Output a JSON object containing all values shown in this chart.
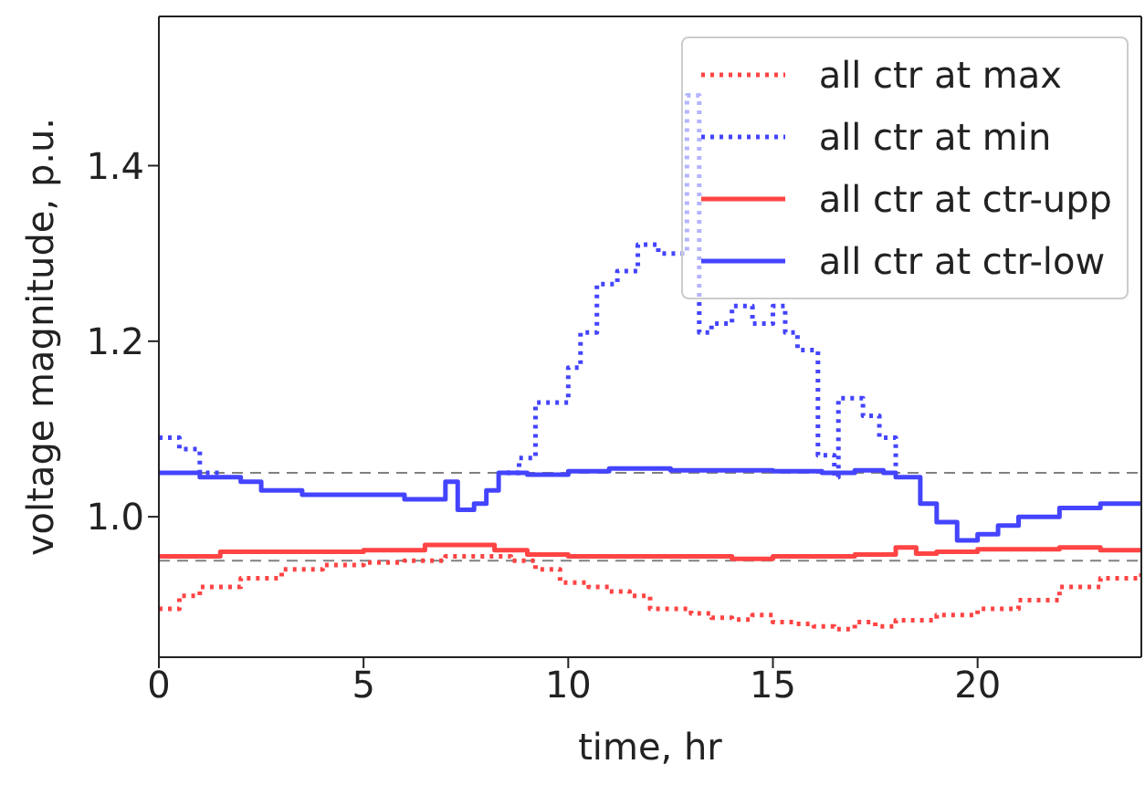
{
  "chart_data": {
    "type": "step",
    "xlabel": "time, hr",
    "ylabel": "voltage magnitude, p.u.",
    "xlim": [
      0,
      24
    ],
    "ylim": [
      0.84,
      1.57
    ],
    "xticks": [
      0,
      5,
      10,
      15,
      20
    ],
    "yticks": [
      {
        "value": 1,
        "label": "1.0"
      },
      1.2,
      1.4
    ],
    "grid": false,
    "legend": "top right",
    "ref_lines": [
      {
        "axis": "y",
        "value": 1.05,
        "color": "#808080",
        "line_style": "dashed"
      },
      {
        "axis": "y",
        "value": 0.95,
        "color": "#808080",
        "line_style": "dashed"
      }
    ],
    "series": [
      {
        "name": "all ctr at max",
        "color": "#ff4444",
        "line_style": "dotted",
        "x": [
          0,
          0.5,
          1,
          2,
          3,
          4,
          5,
          6,
          7,
          8,
          8.6,
          9.2,
          9.8,
          10.5,
          11,
          11.5,
          12,
          13,
          13.5,
          14,
          14.5,
          15,
          15.5,
          16,
          16.5,
          17,
          17.5,
          18,
          19,
          20,
          21,
          22,
          23,
          24
        ],
        "values": [
          0.895,
          0.91,
          0.92,
          0.93,
          0.94,
          0.945,
          0.948,
          0.95,
          0.955,
          0.955,
          0.95,
          0.94,
          0.925,
          0.92,
          0.915,
          0.91,
          0.895,
          0.89,
          0.885,
          0.883,
          0.888,
          0.88,
          0.878,
          0.875,
          0.872,
          0.88,
          0.875,
          0.882,
          0.888,
          0.895,
          0.905,
          0.92,
          0.93,
          0.94
        ]
      },
      {
        "name": "all ctr at min",
        "color": "#4444ff",
        "line_style": "dotted",
        "x": [
          0,
          0.5,
          1,
          1.5,
          3,
          8.5,
          8.8,
          9.2,
          10,
          10.3,
          10.7,
          11.2,
          11.7,
          12.2,
          12.9,
          13.2,
          13.5,
          14,
          14.5,
          15,
          15.3,
          15.6,
          16.1,
          16.5,
          16.6,
          17.2,
          17.6,
          18
        ],
        "values": [
          1.09,
          1.077,
          1.05,
          1.045,
          null,
          1.05,
          1.067,
          1.13,
          1.17,
          1.21,
          1.265,
          1.28,
          1.31,
          1.3,
          1.48,
          1.21,
          1.22,
          1.24,
          1.22,
          1.24,
          1.21,
          1.19,
          1.07,
          1.045,
          1.135,
          1.115,
          1.09,
          1.05
        ]
      },
      {
        "name": "all ctr at ctr-upp",
        "color": "#ff4444",
        "line_style": "solid",
        "x": [
          0,
          1.5,
          4,
          5,
          6.5,
          7.5,
          8.2,
          9,
          10,
          11,
          12,
          14,
          15,
          16,
          17,
          18,
          18.5,
          19,
          20,
          22,
          23,
          24
        ],
        "values": [
          0.955,
          0.96,
          0.96,
          0.962,
          0.968,
          0.968,
          0.962,
          0.957,
          0.955,
          0.955,
          0.955,
          0.952,
          0.955,
          0.955,
          0.957,
          0.965,
          0.958,
          0.96,
          0.963,
          0.965,
          0.962,
          0.96
        ]
      },
      {
        "name": "all ctr at ctr-low",
        "color": "#4444ff",
        "line_style": "solid",
        "x": [
          0,
          1,
          2,
          2.5,
          3.5,
          5,
          6,
          7,
          7.3,
          7.7,
          8,
          8.3,
          9,
          10,
          11,
          12.5,
          15,
          16.2,
          17,
          17.7,
          18,
          18.6,
          19,
          19.5,
          20,
          20.5,
          21,
          22,
          23,
          24
        ],
        "values": [
          1.05,
          1.045,
          1.04,
          1.03,
          1.025,
          1.025,
          1.02,
          1.04,
          1.008,
          1.015,
          1.03,
          1.05,
          1.048,
          1.052,
          1.055,
          1.053,
          1.052,
          1.05,
          1.053,
          1.05,
          1.045,
          1.015,
          0.994,
          0.973,
          0.98,
          0.99,
          1.0,
          1.01,
          1.015,
          1.017
        ]
      }
    ]
  }
}
